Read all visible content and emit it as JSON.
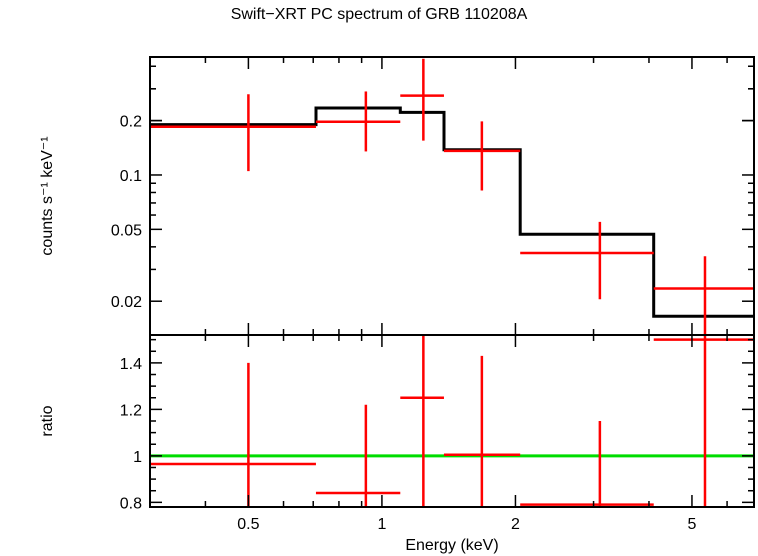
{
  "title": "Swift−XRT PC spectrum of GRB 110208A",
  "chart_data": [
    {
      "type": "line",
      "panel": "spectrum",
      "title": "Swift−XRT PC spectrum of GRB 110208A",
      "xlabel": "Energy (keV)",
      "ylabel": "counts s⁻¹ keV⁻¹",
      "xscale": "log",
      "yscale": "log",
      "xlim": [
        0.3,
        6.9
      ],
      "ylim": [
        0.013,
        0.45
      ],
      "yticks": [
        {
          "value": 0.02,
          "label": "0.02"
        },
        {
          "value": 0.05,
          "label": "0.05"
        },
        {
          "value": 0.1,
          "label": "0.1"
        },
        {
          "value": 0.2,
          "label": "0.2"
        }
      ],
      "series": [
        {
          "name": "",
          "kind": "data-errorbars",
          "color": "#ff0000",
          "points": [
            {
              "xlo": 0.3,
              "xhi": 0.71,
              "x": 0.5,
              "y": 0.185,
              "ylo": 0.105,
              "yhi": 0.28
            },
            {
              "xlo": 0.71,
              "xhi": 1.1,
              "x": 0.92,
              "y": 0.197,
              "ylo": 0.135,
              "yhi": 0.29
            },
            {
              "xlo": 1.1,
              "xhi": 1.38,
              "x": 1.24,
              "y": 0.275,
              "ylo": 0.155,
              "yhi": 0.44
            },
            {
              "xlo": 1.38,
              "xhi": 2.05,
              "x": 1.68,
              "y": 0.136,
              "ylo": 0.082,
              "yhi": 0.198
            },
            {
              "xlo": 2.05,
              "xhi": 4.1,
              "x": 3.1,
              "y": 0.037,
              "ylo": 0.0205,
              "yhi": 0.055
            },
            {
              "xlo": 4.1,
              "xhi": 6.9,
              "x": 5.35,
              "y": 0.0235,
              "ylo": 0.0128,
              "yhi": 0.0355
            }
          ]
        },
        {
          "name": "",
          "kind": "model-step",
          "color": "#000000",
          "bins": [
            {
              "xlo": 0.3,
              "xhi": 0.71,
              "y": 0.19
            },
            {
              "xlo": 0.71,
              "xhi": 1.1,
              "y": 0.235
            },
            {
              "xlo": 1.1,
              "xhi": 1.38,
              "y": 0.222
            },
            {
              "xlo": 1.38,
              "xhi": 2.05,
              "y": 0.138
            },
            {
              "xlo": 2.05,
              "xhi": 4.1,
              "y": 0.047
            },
            {
              "xlo": 4.1,
              "xhi": 6.9,
              "y": 0.0165
            }
          ]
        }
      ]
    },
    {
      "type": "line",
      "panel": "ratio",
      "xlabel": "Energy (keV)",
      "ylabel": "ratio",
      "xscale": "log",
      "yscale": "linear",
      "xlim": [
        0.3,
        6.9
      ],
      "ylim": [
        0.78,
        1.52
      ],
      "xticks": [
        {
          "value": 0.5,
          "label": "0.5"
        },
        {
          "value": 1,
          "label": "1"
        },
        {
          "value": 2,
          "label": "2"
        },
        {
          "value": 5,
          "label": "5"
        }
      ],
      "yticks": [
        {
          "value": 0.8,
          "label": "0.8"
        },
        {
          "value": 1.0,
          "label": "1"
        },
        {
          "value": 1.2,
          "label": "1.2"
        },
        {
          "value": 1.4,
          "label": "1.4"
        }
      ],
      "series": [
        {
          "name": "",
          "kind": "data-errorbars",
          "color": "#ff0000",
          "points": [
            {
              "xlo": 0.3,
              "xhi": 0.71,
              "x": 0.5,
              "y": 0.965,
              "ylo": 0.78,
              "yhi": 1.4
            },
            {
              "xlo": 0.71,
              "xhi": 1.1,
              "x": 0.92,
              "y": 0.84,
              "ylo": 0.78,
              "yhi": 1.22
            },
            {
              "xlo": 1.1,
              "xhi": 1.38,
              "x": 1.24,
              "y": 1.25,
              "ylo": 0.78,
              "yhi": 1.52
            },
            {
              "xlo": 1.38,
              "xhi": 2.05,
              "x": 1.68,
              "y": 1.005,
              "ylo": 0.78,
              "yhi": 1.43
            },
            {
              "xlo": 2.05,
              "xhi": 4.1,
              "x": 3.1,
              "y": 0.79,
              "ylo": 0.78,
              "yhi": 1.15
            },
            {
              "xlo": 4.1,
              "xhi": 6.9,
              "x": 5.35,
              "y": 1.5,
              "ylo": 0.78,
              "yhi": 1.52
            }
          ]
        },
        {
          "name": "",
          "kind": "reference-line",
          "color": "#00dd00",
          "y": 1.0
        }
      ]
    }
  ]
}
